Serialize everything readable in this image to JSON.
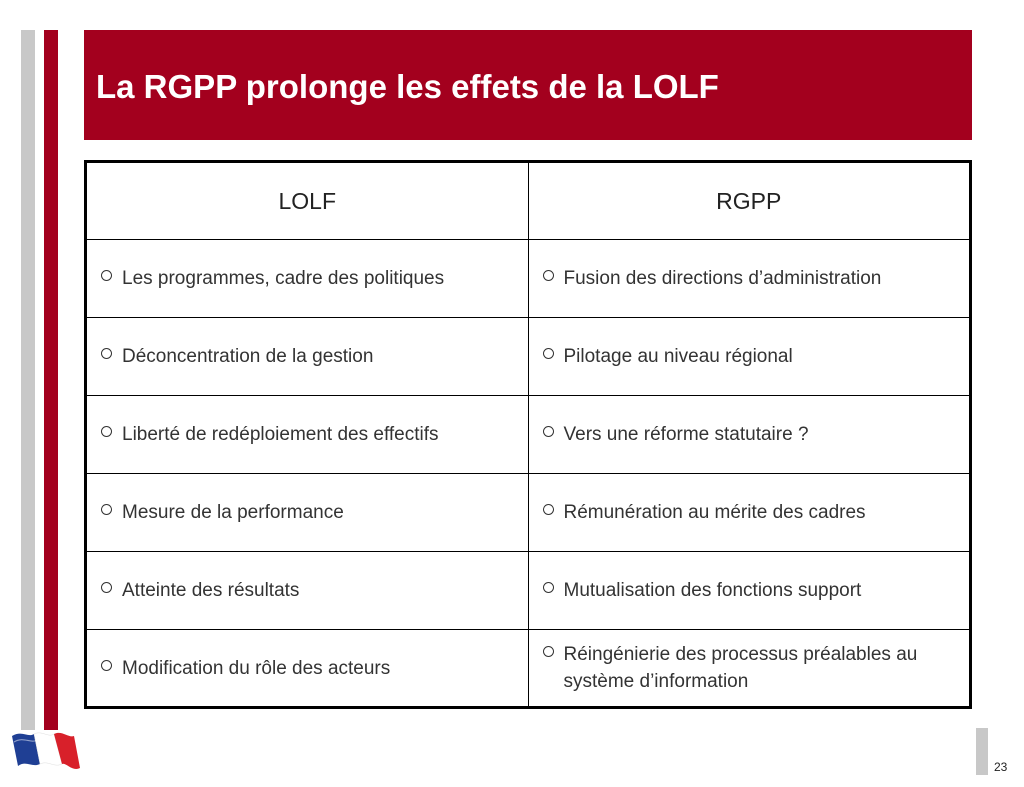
{
  "slide": {
    "title": "La RGPP prolonge les effets de la LOLF",
    "page_number": "23",
    "accent_color": "#a3001e",
    "stripe_color": "#c8c8c8"
  },
  "table": {
    "headers": [
      "LOLF",
      "RGPP"
    ],
    "rows": [
      [
        "Les programmes, cadre des politiques",
        "Fusion des directions d’administration"
      ],
      [
        "Déconcentration de la gestion",
        "Pilotage au niveau régional"
      ],
      [
        "Liberté de redéploiement des effectifs",
        "Vers une réforme statutaire ?"
      ],
      [
        "Mesure de la performance",
        "Rémunération au mérite des cadres"
      ],
      [
        "Atteinte des résultats",
        "Mutualisation des fonctions support"
      ],
      [
        "Modification du rôle des acteurs",
        "Réingénierie des processus préalables au système d’information"
      ]
    ],
    "bullet_icon": "hollow-circle-icon"
  },
  "logo": {
    "icon": "french-flag-icon"
  }
}
